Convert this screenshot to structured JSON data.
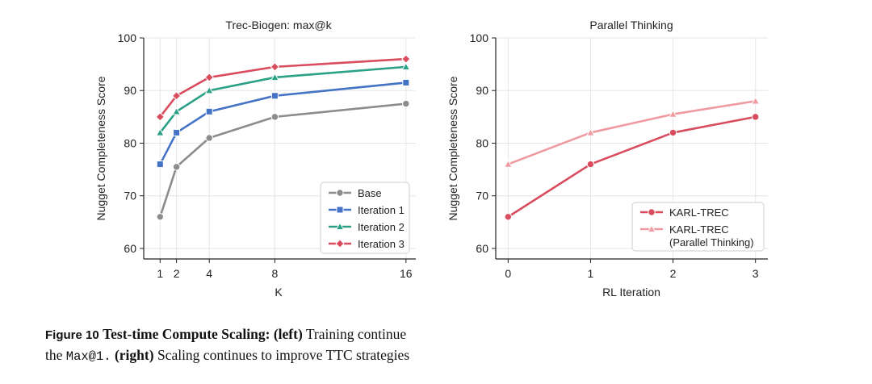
{
  "chart_data": [
    {
      "type": "line",
      "title": "Trec-Biogen: max@k",
      "xlabel": "K",
      "ylabel": "Nugget Completeness Score",
      "x": [
        1,
        2,
        4,
        8,
        16
      ],
      "xticks": [
        "1",
        "2",
        "4",
        "8",
        "16"
      ],
      "xlim": [
        0,
        16.6
      ],
      "ylim": [
        58,
        100
      ],
      "yticks": [
        "60",
        "70",
        "80",
        "90",
        "100"
      ],
      "grid": true,
      "legend_position": "lower-right",
      "series": [
        {
          "name": "Base",
          "color": "#8c8c8c",
          "marker": "circle",
          "values": [
            66,
            75.5,
            81,
            85,
            87.5
          ]
        },
        {
          "name": "Iteration 1",
          "color": "#4472c4",
          "marker": "square",
          "values": [
            76,
            82,
            86,
            89,
            91.5
          ]
        },
        {
          "name": "Iteration 2",
          "color": "#2aa187",
          "marker": "triangle",
          "values": [
            82,
            86,
            90,
            92.5,
            94.5
          ]
        },
        {
          "name": "Iteration 3",
          "color": "#d94c5e",
          "marker": "diamond",
          "values": [
            85,
            89,
            92.5,
            94.5,
            96
          ]
        }
      ]
    },
    {
      "type": "line",
      "title": "Parallel Thinking",
      "xlabel": "RL Iteration",
      "ylabel": "Nugget Completeness Score",
      "x": [
        0,
        1,
        2,
        3
      ],
      "xticks": [
        "0",
        "1",
        "2",
        "3"
      ],
      "xlim": [
        -0.15,
        3.15
      ],
      "ylim": [
        58,
        100
      ],
      "yticks": [
        "60",
        "70",
        "80",
        "90",
        "100"
      ],
      "grid": true,
      "legend_position": "lower-right",
      "series": [
        {
          "name": "KARL-TREC",
          "color": "#d94c5e",
          "marker": "circle",
          "values": [
            66,
            76,
            82,
            85
          ]
        },
        {
          "name": "KARL-TREC (Parallel Thinking)",
          "name_lines": [
            "KARL-TREC",
            "(Parallel Thinking)"
          ],
          "color": "#ef9aa1",
          "marker": "triangle",
          "values": [
            76,
            82,
            85.5,
            88
          ]
        }
      ]
    }
  ],
  "caption": {
    "label": "Figure 10",
    "title": "Test-time Compute Scaling:",
    "left_tag": "(left)",
    "line1_text": "Training continue",
    "line2_start": "the",
    "code": "Max@1.",
    "right_tag": "(right)",
    "line2_text": "Scaling continues to improve TTC strategies"
  }
}
